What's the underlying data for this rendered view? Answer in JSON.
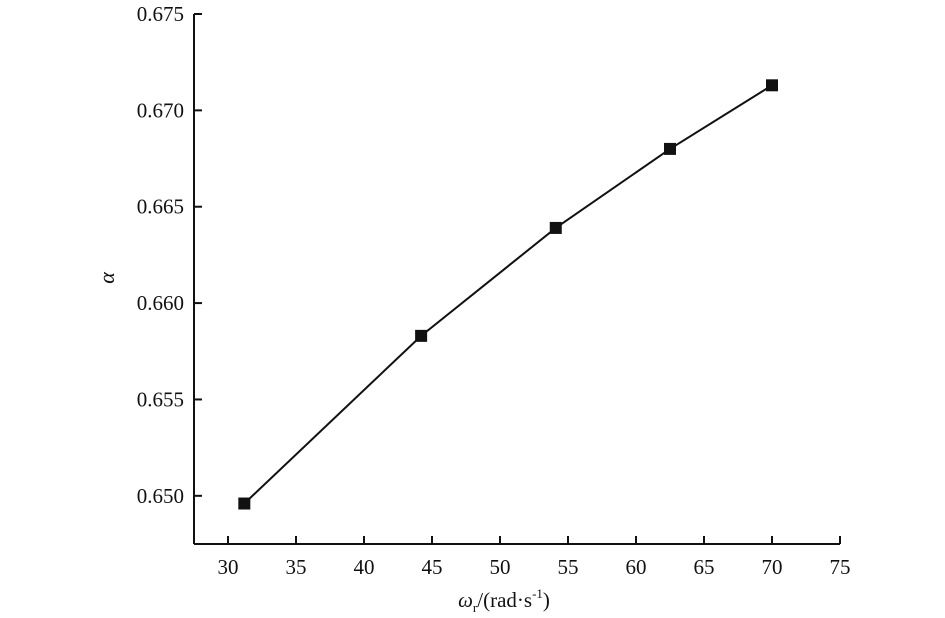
{
  "chart_data": {
    "type": "line",
    "title": "",
    "xlabel": "",
    "ylabel": "α",
    "xlabel_parts": {
      "symbol": "ω",
      "subscript": "r",
      "unit_prefix": "/(rad·s",
      "exponent": "-1",
      "unit_suffix": ")"
    },
    "xlim": [
      27.5,
      75
    ],
    "ylim": [
      0.6475,
      0.675
    ],
    "x_ticks": [
      30,
      35,
      40,
      45,
      50,
      55,
      60,
      65,
      70,
      75
    ],
    "x_tick_labels": [
      "30",
      "35",
      "40",
      "45",
      "50",
      "55",
      "60",
      "65",
      "70",
      "75"
    ],
    "y_ticks": [
      0.65,
      0.655,
      0.66,
      0.665,
      0.67,
      0.675
    ],
    "y_tick_labels": [
      "0.650",
      "0.655",
      "0.660",
      "0.665",
      "0.670",
      "0.675"
    ],
    "grid": false,
    "marker": "square",
    "series": [
      {
        "x": [
          31.2,
          44.2,
          54.1,
          62.5,
          70.0
        ],
        "y": [
          0.6496,
          0.6583,
          0.6639,
          0.668,
          0.6713
        ]
      }
    ]
  }
}
